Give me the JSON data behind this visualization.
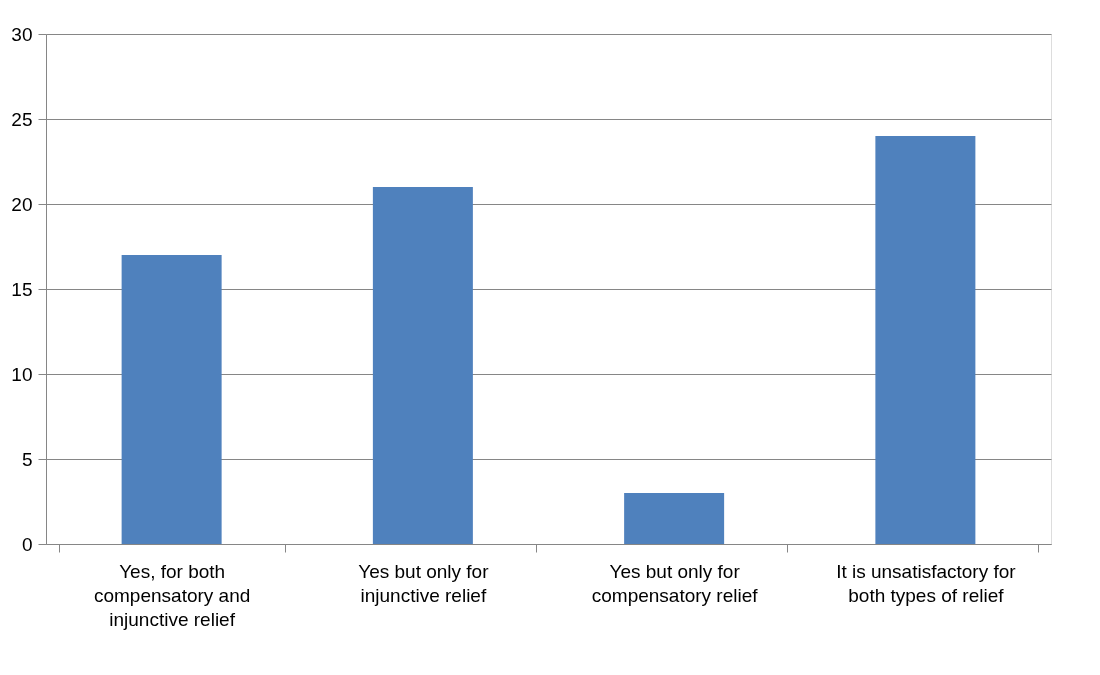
{
  "chart_data": {
    "type": "bar",
    "categories": [
      "Yes, for both compensatory and injunctive relief",
      "Yes but only for injunctive relief",
      "Yes but only for compensatory relief",
      "It is unsatisfactory for both types of relief"
    ],
    "values": [
      17,
      21,
      3,
      24
    ],
    "color": "#4f81bd",
    "ylim": [
      0,
      30
    ],
    "yticks": [
      0,
      5,
      10,
      15,
      20,
      25,
      30
    ],
    "grid": "y"
  }
}
